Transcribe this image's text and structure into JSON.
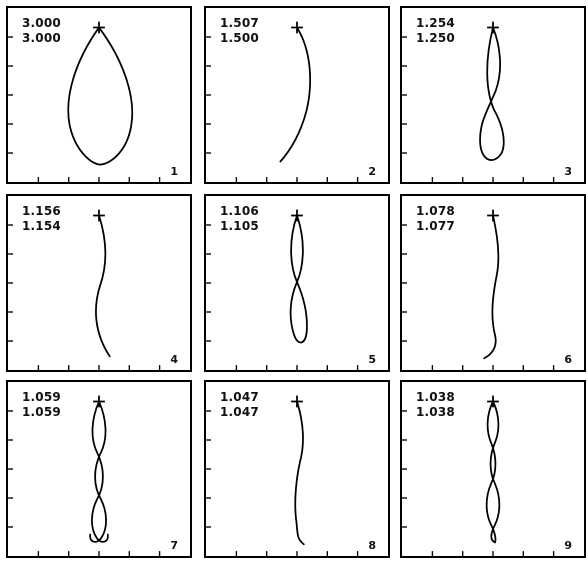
{
  "panels": [
    {
      "values": [
        "3.000",
        "3.000"
      ],
      "number": "1",
      "mode": "loop"
    },
    {
      "values": [
        "1.507",
        "1.500"
      ],
      "number": "2",
      "mode": "arc"
    },
    {
      "values": [
        "1.254",
        "1.250"
      ],
      "number": "3",
      "mode": "figure8"
    },
    {
      "values": [
        "1.156",
        "1.154"
      ],
      "number": "4",
      "mode": "s-curve"
    },
    {
      "values": [
        "1.106",
        "1.105"
      ],
      "number": "5",
      "mode": "three-lobes"
    },
    {
      "values": [
        "1.078",
        "1.077"
      ],
      "number": "6",
      "mode": "wave"
    },
    {
      "values": [
        "1.059",
        "1.059"
      ],
      "number": "7",
      "mode": "four-lobes"
    },
    {
      "values": [
        "1.047",
        "1.047"
      ],
      "number": "8",
      "mode": "wave"
    },
    {
      "values": [
        "1.038",
        "1.038"
      ],
      "number": "9",
      "mode": "five-lobes"
    }
  ],
  "colors": {
    "line": "#000000",
    "frame": "#000000",
    "background": "#ffffff"
  }
}
